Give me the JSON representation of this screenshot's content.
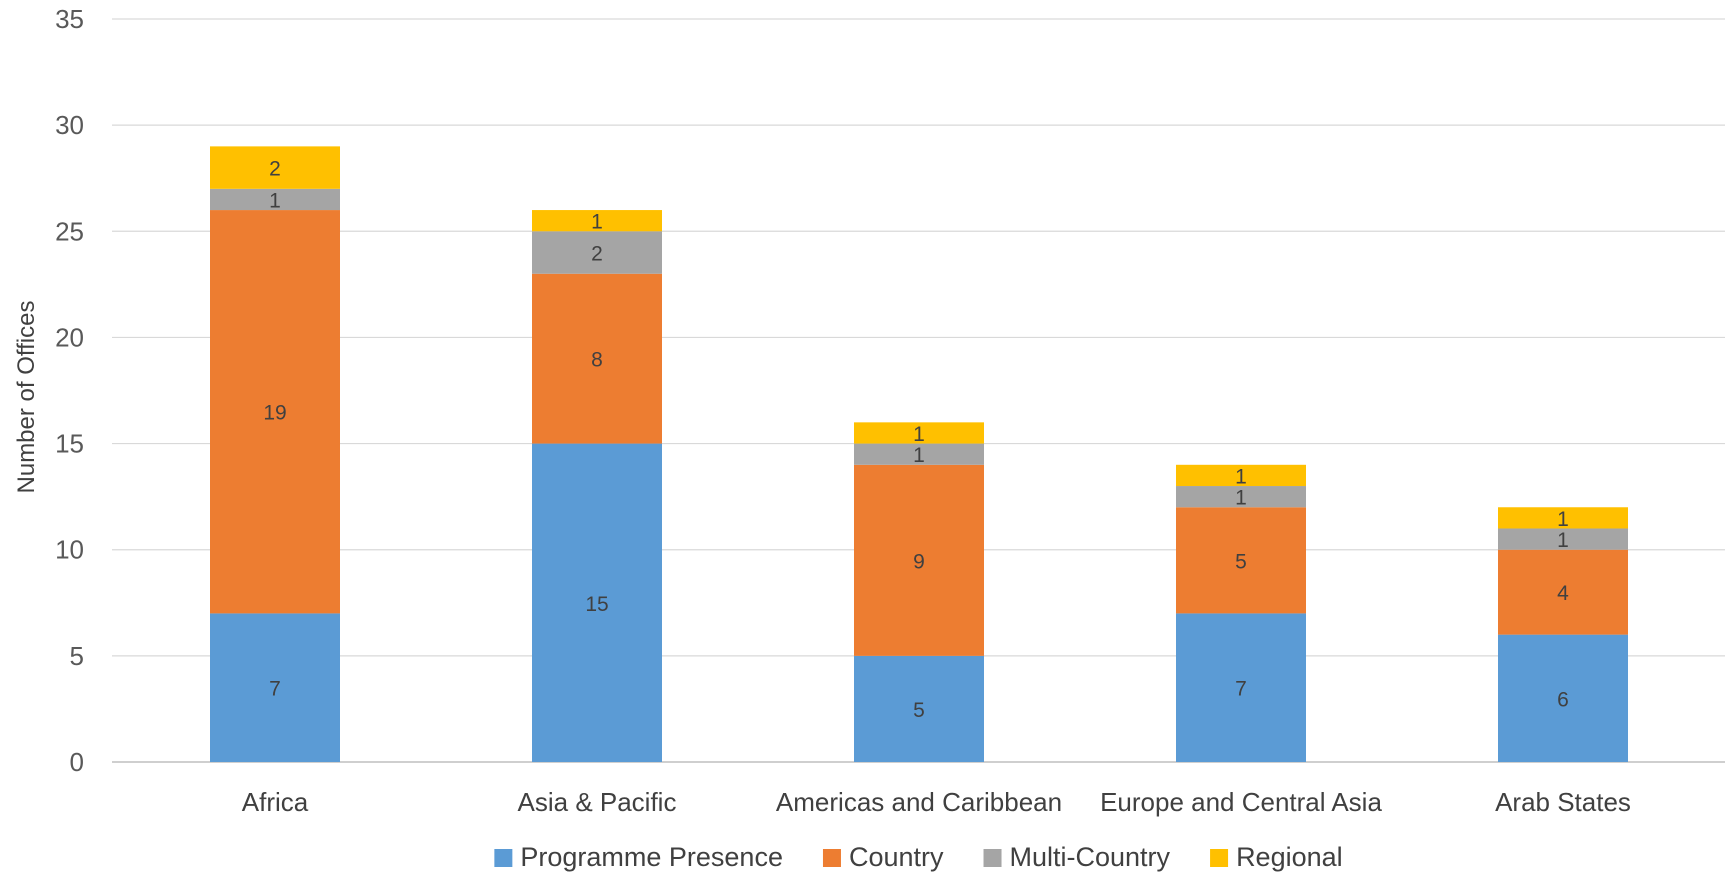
{
  "chart_data": {
    "type": "bar",
    "stacked": true,
    "title": "",
    "xlabel": "",
    "ylabel": "Number of Offices",
    "ylim": [
      0,
      35
    ],
    "yticks": [
      0,
      5,
      10,
      15,
      20,
      25,
      30,
      35
    ],
    "grid": true,
    "legend_position": "bottom",
    "categories": [
      "Africa",
      "Asia & Pacific",
      "Americas and Caribbean",
      "Europe and Central Asia",
      "Arab States"
    ],
    "series": [
      {
        "name": "Programme Presence",
        "color": "#5b9bd5",
        "values": [
          7,
          15,
          5,
          7,
          6
        ]
      },
      {
        "name": "Country",
        "color": "#ed7d31",
        "values": [
          19,
          8,
          9,
          5,
          4
        ]
      },
      {
        "name": "Multi-Country",
        "color": "#a5a5a5",
        "values": [
          1,
          2,
          1,
          1,
          1
        ]
      },
      {
        "name": "Regional",
        "color": "#ffc000",
        "values": [
          2,
          1,
          1,
          1,
          1
        ]
      }
    ]
  }
}
